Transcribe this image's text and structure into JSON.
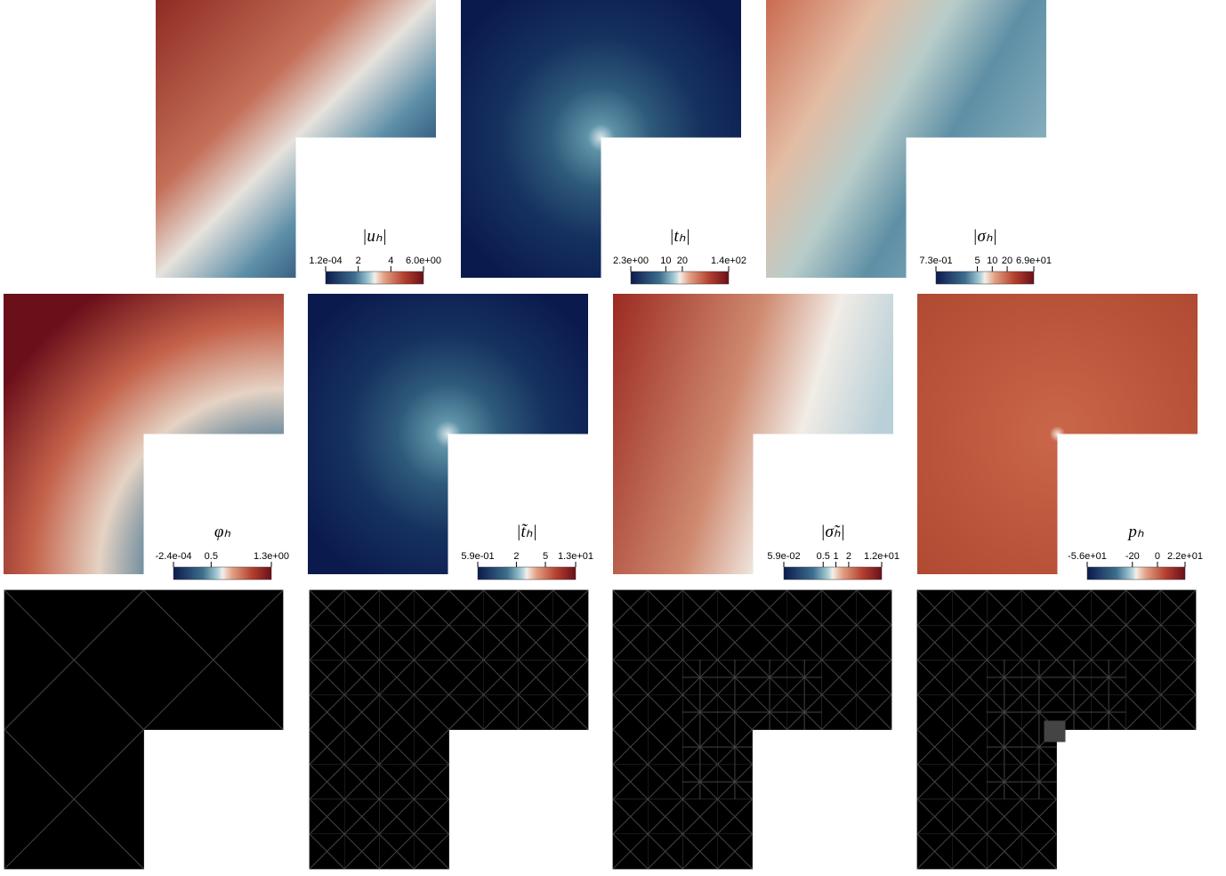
{
  "panels": [
    {
      "label": "|uₕ|",
      "colorbar": {
        "scale": "linear",
        "lim": [
          0.00012,
          6
        ],
        "ticks": [
          {
            "value": 0.00012,
            "label": "1.2e-04"
          },
          2,
          4,
          {
            "value": 6,
            "label": "6.0e+00"
          }
        ]
      }
    },
    {
      "label": "|tₕ|",
      "colorbar": {
        "scale": "log",
        "lim": [
          2.3,
          140
        ],
        "ticks": [
          {
            "value": 2.3,
            "label": "2.3e+00"
          },
          10,
          20,
          {
            "value": 140,
            "label": "1.4e+02"
          }
        ]
      }
    },
    {
      "label": "|σₕ|",
      "colorbar": {
        "scale": "log",
        "lim": [
          0.73,
          69
        ],
        "ticks": [
          {
            "value": 0.73,
            "label": "7.3e-01"
          },
          5,
          10,
          20,
          {
            "value": 69,
            "label": "6.9e+01"
          }
        ]
      }
    },
    {
      "label": "φₕ",
      "colorbar": {
        "scale": "linear",
        "lim": [
          -0.00024,
          1.3
        ],
        "ticks": [
          {
            "value": -0.00024,
            "label": "-2.4e-04"
          },
          0.5,
          {
            "value": 1.3,
            "label": "1.3e+00"
          }
        ]
      }
    },
    {
      "label": "|t̃ₕ|",
      "colorbar": {
        "scale": "log",
        "lim": [
          0.59,
          13
        ],
        "ticks": [
          {
            "value": 0.59,
            "label": "5.9e-01"
          },
          2,
          5,
          {
            "value": 13,
            "label": "1.3e+01"
          }
        ]
      }
    },
    {
      "label": "|σ̃ₕ|",
      "colorbar": {
        "scale": "log",
        "lim": [
          0.059,
          12
        ],
        "ticks": [
          {
            "value": 0.059,
            "label": "5.9e-02"
          },
          0.5,
          1,
          2,
          {
            "value": 12,
            "label": "1.2e+01"
          }
        ]
      }
    },
    {
      "label": "pₕ",
      "colorbar": {
        "scale": "linear",
        "lim": [
          -56,
          22
        ],
        "ticks": [
          {
            "value": -56,
            "label": "-5.6e+01"
          },
          -20,
          0,
          {
            "value": 22,
            "label": "2.2e+01"
          }
        ]
      }
    }
  ]
}
